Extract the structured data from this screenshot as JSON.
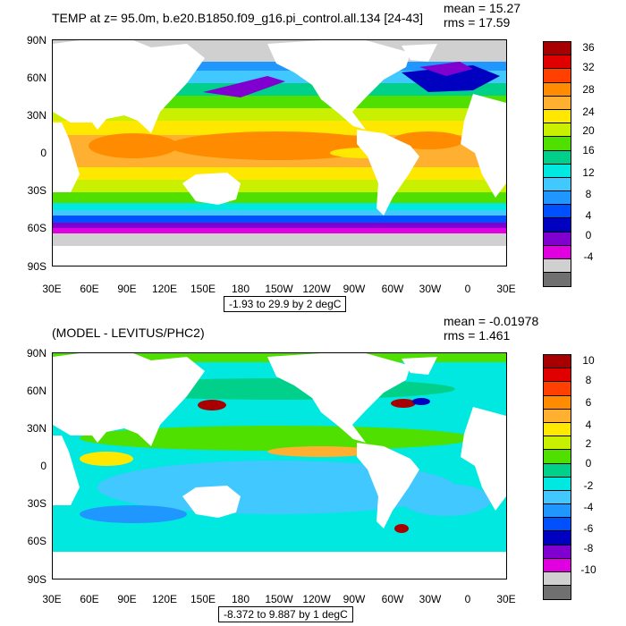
{
  "top": {
    "title": "TEMP at z=  95.0m, b.e20.B1850.f09_g16.pi_control.all.134 [24-43]",
    "mean": "mean = 15.27",
    "rms": "rms = 17.59",
    "range": "-1.93 to 29.9 by 2 degC",
    "colorbar_labels": [
      "36",
      "32",
      "28",
      "24",
      "20",
      "16",
      "12",
      "8",
      "4",
      "0",
      "-4"
    ],
    "colorbar_colors": [
      "#a80000",
      "#e00000",
      "#ff4000",
      "#ff8c00",
      "#ffb030",
      "#ffe800",
      "#c8f000",
      "#50e000",
      "#00d08a",
      "#00e8e0",
      "#40c8ff",
      "#2096ff",
      "#0050ff",
      "#0000c0",
      "#8000d0",
      "#e000e0",
      "#d0d0d0",
      "#707070"
    ]
  },
  "bottom": {
    "title": "(MODEL - LEVITUS/PHC2)",
    "mean": "mean = -0.01978",
    "rms": "rms = 1.461",
    "range": "-8.372 to 9.887 by 1 degC",
    "colorbar_labels": [
      "10",
      "8",
      "6",
      "4",
      "2",
      "0",
      "-2",
      "-4",
      "-6",
      "-8",
      "-10"
    ],
    "colorbar_colors": [
      "#a80000",
      "#e00000",
      "#ff4000",
      "#ff8c00",
      "#ffb030",
      "#ffe800",
      "#c8f000",
      "#50e000",
      "#00d08a",
      "#00e8e0",
      "#40c8ff",
      "#2096ff",
      "#0050ff",
      "#0000c0",
      "#8000d0",
      "#e000e0",
      "#d0d0d0",
      "#707070"
    ]
  },
  "lat_labels": [
    "90N",
    "60N",
    "30N",
    "0",
    "30S",
    "60S",
    "90S"
  ],
  "lon_labels": [
    "30E",
    "60E",
    "90E",
    "120E",
    "150E",
    "180",
    "150W",
    "120W",
    "90W",
    "60W",
    "30W",
    "0",
    "30E"
  ]
}
